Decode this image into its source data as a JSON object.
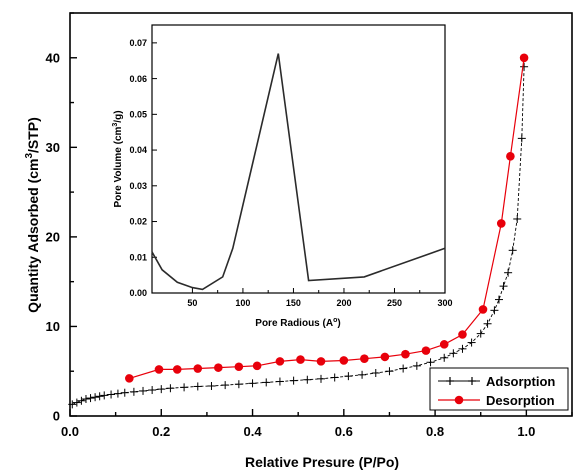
{
  "chart_data": [
    {
      "type": "line",
      "title": "",
      "xlabel": "Relative Presure (P/Po)",
      "ylabel_parts": [
        "Quantity Adsorbed (cm",
        "3",
        "/STP)"
      ],
      "xlim": [
        0.0,
        1.1
      ],
      "ylim": [
        0,
        45
      ],
      "xticks": [
        0.0,
        0.2,
        0.4,
        0.6,
        0.8,
        1.0
      ],
      "xtick_labels": [
        "0.0",
        "0.2",
        "0.4",
        "0.6",
        "0.8",
        "1.0"
      ],
      "yticks": [
        0,
        10,
        20,
        30,
        40
      ],
      "ytick_labels": [
        "0",
        "10",
        "20",
        "30",
        "40"
      ],
      "grid": false,
      "legend_position": "bottom-right",
      "series": [
        {
          "name": "Adsorption",
          "color": "#000000",
          "marker": "plus",
          "x": [
            0.005,
            0.015,
            0.025,
            0.035,
            0.045,
            0.055,
            0.065,
            0.075,
            0.09,
            0.105,
            0.12,
            0.14,
            0.16,
            0.18,
            0.2,
            0.22,
            0.25,
            0.28,
            0.31,
            0.34,
            0.37,
            0.4,
            0.43,
            0.46,
            0.49,
            0.52,
            0.55,
            0.58,
            0.61,
            0.64,
            0.67,
            0.7,
            0.73,
            0.76,
            0.79,
            0.82,
            0.84,
            0.86,
            0.88,
            0.9,
            0.915,
            0.93,
            0.94,
            0.95,
            0.96,
            0.97,
            0.98,
            0.99,
            0.995
          ],
          "y": [
            1.3,
            1.5,
            1.7,
            1.9,
            2.0,
            2.1,
            2.2,
            2.3,
            2.4,
            2.5,
            2.6,
            2.7,
            2.8,
            2.9,
            3.0,
            3.1,
            3.2,
            3.3,
            3.35,
            3.45,
            3.55,
            3.65,
            3.75,
            3.85,
            3.95,
            4.05,
            4.15,
            4.3,
            4.45,
            4.6,
            4.8,
            5.0,
            5.3,
            5.6,
            6.0,
            6.5,
            7.0,
            7.5,
            8.2,
            9.2,
            10.3,
            11.8,
            13.0,
            14.5,
            16.0,
            18.5,
            22.0,
            31.0,
            39.0
          ]
        },
        {
          "name": "Desorption",
          "color": "#e8000b",
          "marker": "circle",
          "x": [
            0.13,
            0.195,
            0.235,
            0.28,
            0.325,
            0.37,
            0.41,
            0.46,
            0.505,
            0.55,
            0.6,
            0.645,
            0.69,
            0.735,
            0.78,
            0.82,
            0.86,
            0.905,
            0.945,
            0.965,
            0.995
          ],
          "y": [
            4.2,
            5.2,
            5.2,
            5.3,
            5.4,
            5.5,
            5.6,
            6.1,
            6.3,
            6.1,
            6.2,
            6.4,
            6.6,
            6.9,
            7.3,
            8.0,
            9.1,
            11.9,
            21.5,
            29.0,
            40.0
          ]
        }
      ]
    },
    {
      "type": "line",
      "title": "",
      "xlabel_parts": [
        "Pore Radious (A",
        "o",
        ")"
      ],
      "ylabel_parts": [
        "Pore Volume (cm",
        "3",
        "/g)"
      ],
      "xlim": [
        10,
        300
      ],
      "ylim": [
        0,
        0.075
      ],
      "xticks": [
        50,
        100,
        150,
        200,
        250,
        300
      ],
      "xtick_labels": [
        "50",
        "100",
        "150",
        "200",
        "250",
        "300"
      ],
      "yticks": [
        0,
        0.01,
        0.02,
        0.03,
        0.04,
        0.05,
        0.06,
        0.07
      ],
      "ytick_labels": [
        "0.00",
        "0.01",
        "0.02",
        "0.03",
        "0.04",
        "0.05",
        "0.06",
        "0.07"
      ],
      "grid": false,
      "series": [
        {
          "color": "#2b2b2b",
          "x": [
            10,
            20,
            35,
            50,
            60,
            80,
            90,
            135,
            165,
            220,
            300
          ],
          "y": [
            0.0115,
            0.0065,
            0.003,
            0.0015,
            0.001,
            0.0045,
            0.0125,
            0.067,
            0.0035,
            0.0045,
            0.0125
          ]
        }
      ]
    }
  ]
}
